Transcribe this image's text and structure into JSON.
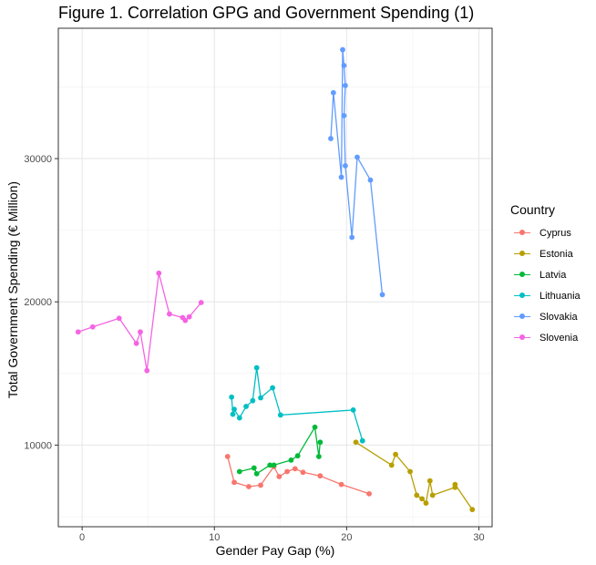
{
  "chart_data": {
    "type": "line",
    "title": "Figure 1. Correlation GPG and Government Spending (1)",
    "xlabel": "Gender Pay Gap (%)",
    "ylabel": "Total Government Spending (€ Million)",
    "xlim": [
      -1.8,
      31
    ],
    "ylim": [
      4300,
      39100
    ],
    "xticks": [
      0,
      10,
      20,
      30
    ],
    "yticks": [
      10000,
      20000,
      30000
    ],
    "grid": true,
    "legend_title": "Country",
    "legend_position": "right",
    "series": [
      {
        "name": "Cyprus",
        "color": "#F8766D",
        "points": [
          [
            11.0,
            9200
          ],
          [
            11.5,
            7400
          ],
          [
            12.6,
            7100
          ],
          [
            13.5,
            7200
          ],
          [
            14.5,
            8500
          ],
          [
            14.9,
            7800
          ],
          [
            15.5,
            8150
          ],
          [
            16.1,
            8350
          ],
          [
            16.7,
            8100
          ],
          [
            18.0,
            7850
          ],
          [
            19.6,
            7250
          ],
          [
            21.7,
            6600
          ]
        ]
      },
      {
        "name": "Estonia",
        "color": "#B79F00",
        "points": [
          [
            20.7,
            10200
          ],
          [
            23.4,
            8600
          ],
          [
            23.7,
            9350
          ],
          [
            24.8,
            8150
          ],
          [
            25.3,
            6500
          ],
          [
            25.7,
            6250
          ],
          [
            26.0,
            5950
          ],
          [
            26.3,
            7500
          ],
          [
            26.5,
            6500
          ],
          [
            28.2,
            7050
          ],
          [
            28.2,
            7250
          ],
          [
            29.5,
            5500
          ]
        ]
      },
      {
        "name": "Latvia",
        "color": "#00BA38",
        "points": [
          [
            11.9,
            8150
          ],
          [
            13.0,
            8400
          ],
          [
            13.2,
            8000
          ],
          [
            14.2,
            8600
          ],
          [
            14.5,
            8600
          ],
          [
            15.8,
            8950
          ],
          [
            16.3,
            9250
          ],
          [
            17.6,
            11250
          ],
          [
            17.9,
            9200
          ],
          [
            18.0,
            10200
          ]
        ]
      },
      {
        "name": "Lithuania",
        "color": "#00BFC4",
        "points": [
          [
            11.3,
            13350
          ],
          [
            11.4,
            12150
          ],
          [
            11.5,
            12500
          ],
          [
            11.9,
            11900
          ],
          [
            12.4,
            12700
          ],
          [
            12.9,
            13100
          ],
          [
            13.2,
            15400
          ],
          [
            13.5,
            13300
          ],
          [
            14.4,
            14000
          ],
          [
            15.0,
            12100
          ],
          [
            20.5,
            12450
          ],
          [
            21.2,
            10300
          ]
        ]
      },
      {
        "name": "Slovakia",
        "color": "#619CFF",
        "points": [
          [
            18.8,
            31400
          ],
          [
            19.0,
            34600
          ],
          [
            19.6,
            28700
          ],
          [
            19.7,
            37600
          ],
          [
            19.8,
            36500
          ],
          [
            19.9,
            35100
          ],
          [
            19.8,
            33000
          ],
          [
            19.9,
            29500
          ],
          [
            20.4,
            24500
          ],
          [
            20.8,
            30100
          ],
          [
            21.8,
            28500
          ],
          [
            22.7,
            20500
          ]
        ]
      },
      {
        "name": "Slovenia",
        "color": "#F564E3",
        "points": [
          [
            -0.3,
            17900
          ],
          [
            0.8,
            18250
          ],
          [
            2.8,
            18850
          ],
          [
            4.1,
            17100
          ],
          [
            4.4,
            17900
          ],
          [
            4.9,
            15200
          ],
          [
            5.8,
            22000
          ],
          [
            6.6,
            19150
          ],
          [
            7.6,
            18900
          ],
          [
            7.8,
            18700
          ],
          [
            8.1,
            18950
          ],
          [
            9.0,
            19950
          ]
        ]
      }
    ]
  }
}
